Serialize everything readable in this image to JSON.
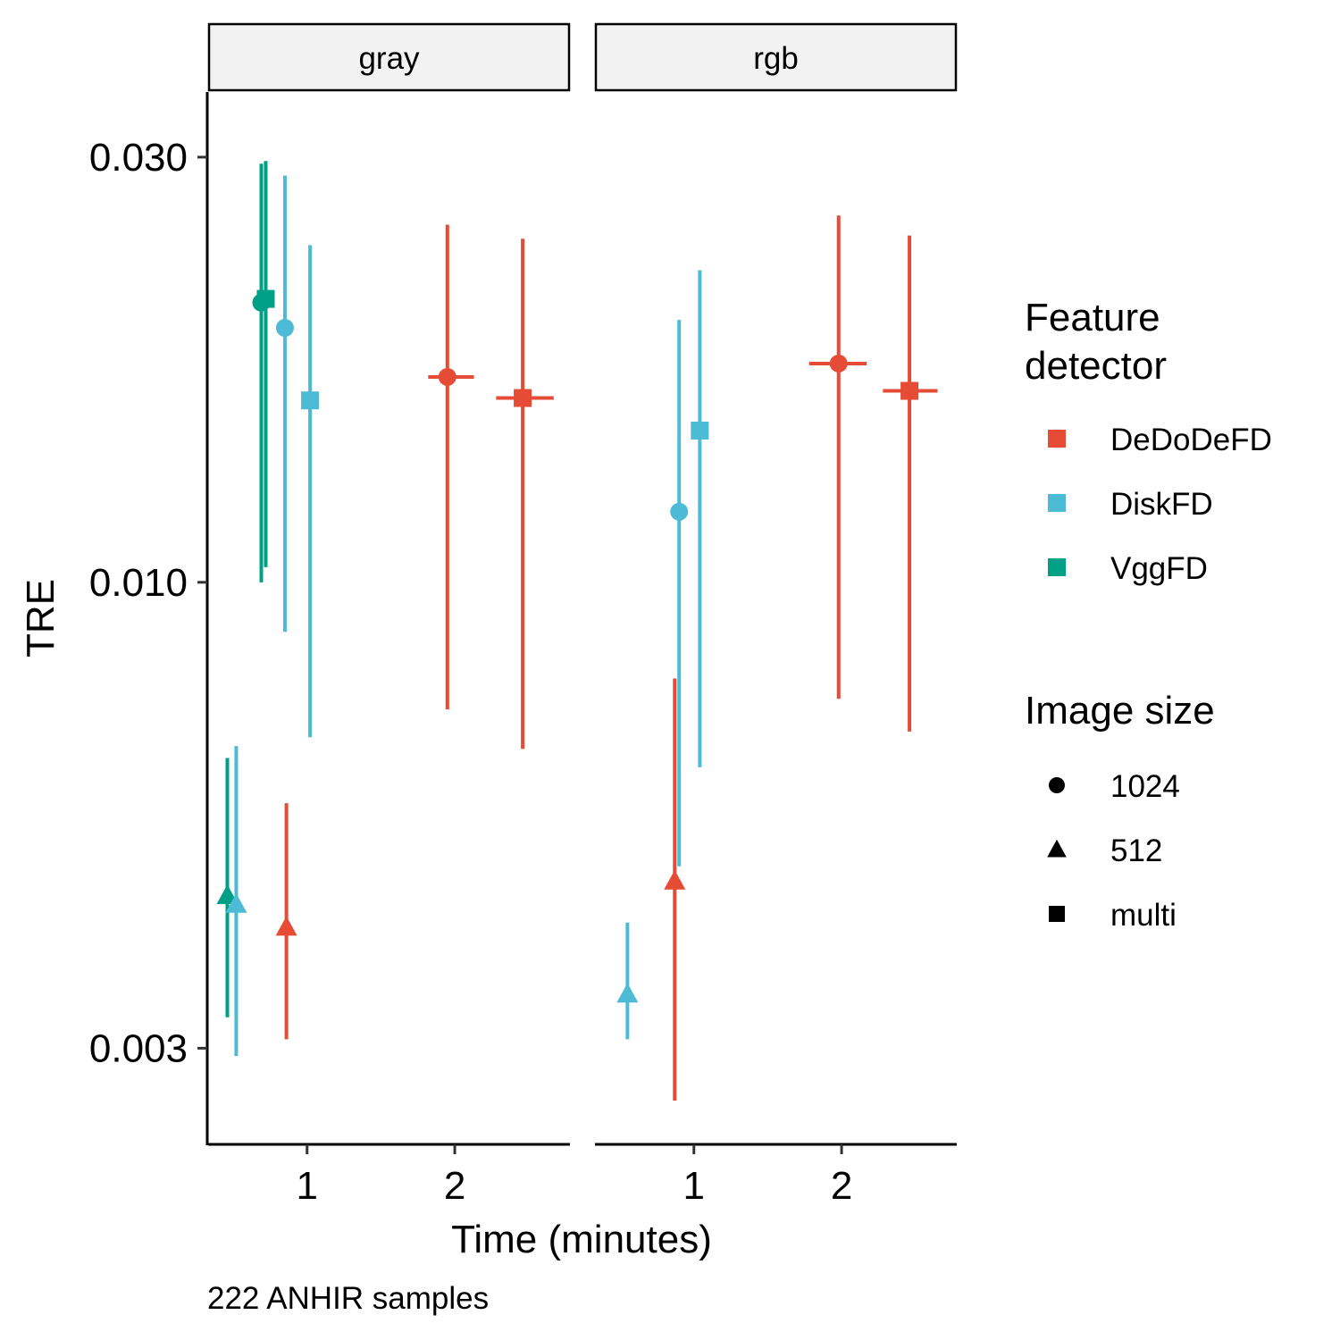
{
  "chart_data": {
    "type": "scatter",
    "title": "",
    "xlabel": "Time (minutes)",
    "ylabel": "TRE",
    "caption": "222 ANHIR samples",
    "y_scale": "log10",
    "ylim": [
      0.00234,
      0.0355
    ],
    "y_ticks": [
      {
        "value": 0.003,
        "label": "0.003"
      },
      {
        "value": 0.01,
        "label": "0.010"
      },
      {
        "value": 0.03,
        "label": "0.030"
      }
    ],
    "xlim": [
      0.33,
      2.78
    ],
    "x_ticks": [
      {
        "value": 1,
        "label": "1"
      },
      {
        "value": 2,
        "label": "2"
      }
    ],
    "grid": false,
    "legend_placement": "right",
    "colors": {
      "DeDoDeFD": "#E64B35",
      "DiskFD": "#4DBBD5",
      "VggFD": "#00A087"
    },
    "legend": {
      "color_title": [
        "Feature",
        "detector"
      ],
      "color_items": [
        "DeDoDeFD",
        "DiskFD",
        "VggFD"
      ],
      "shape_title": "Image size",
      "shape_items": [
        {
          "label": "1024",
          "shape": "circle"
        },
        {
          "label": "512",
          "shape": "triangle"
        },
        {
          "label": "multi",
          "shape": "square"
        }
      ]
    },
    "panels": [
      {
        "name": "gray",
        "points": [
          {
            "detector": "VggFD",
            "size": "512",
            "x": 0.46,
            "x_low": 0.46,
            "x_high": 0.46,
            "y": 0.00445,
            "y_low": 0.00325,
            "y_high": 0.00635
          },
          {
            "detector": "DiskFD",
            "size": "512",
            "x": 0.52,
            "x_low": 0.52,
            "x_high": 0.52,
            "y": 0.00435,
            "y_low": 0.00294,
            "y_high": 0.00655
          },
          {
            "detector": "DeDoDeFD",
            "size": "512",
            "x": 0.86,
            "x_low": 0.86,
            "x_high": 0.86,
            "y": 0.0041,
            "y_low": 0.00307,
            "y_high": 0.00565
          },
          {
            "detector": "VggFD",
            "size": "1024",
            "x": 0.69,
            "x_low": 0.69,
            "x_high": 0.69,
            "y": 0.0206,
            "y_low": 0.01,
            "y_high": 0.0295
          },
          {
            "detector": "VggFD",
            "size": "multi",
            "x": 0.72,
            "x_low": 0.72,
            "x_high": 0.72,
            "y": 0.0208,
            "y_low": 0.0104,
            "y_high": 0.0297
          },
          {
            "detector": "DiskFD",
            "size": "1024",
            "x": 0.85,
            "x_low": 0.85,
            "x_high": 0.85,
            "y": 0.0193,
            "y_low": 0.0088,
            "y_high": 0.0286
          },
          {
            "detector": "DiskFD",
            "size": "multi",
            "x": 1.02,
            "x_low": 1.02,
            "x_high": 1.02,
            "y": 0.016,
            "y_low": 0.0067,
            "y_high": 0.0239
          },
          {
            "detector": "DeDoDeFD",
            "size": "1024",
            "x": 1.95,
            "x_low": 1.82,
            "x_high": 2.13,
            "y": 0.017,
            "y_low": 0.0072,
            "y_high": 0.0252
          },
          {
            "detector": "DeDoDeFD",
            "size": "multi",
            "x": 2.46,
            "x_low": 2.28,
            "x_high": 2.67,
            "y": 0.0161,
            "y_low": 0.0065,
            "y_high": 0.0243
          }
        ]
      },
      {
        "name": "rgb",
        "points": [
          {
            "detector": "DiskFD",
            "size": "512",
            "x": 0.55,
            "x_low": 0.55,
            "x_high": 0.55,
            "y": 0.00345,
            "y_low": 0.00307,
            "y_high": 0.00415
          },
          {
            "detector": "DeDoDeFD",
            "size": "512",
            "x": 0.87,
            "x_low": 0.87,
            "x_high": 0.87,
            "y": 0.00462,
            "y_low": 0.00262,
            "y_high": 0.0078
          },
          {
            "detector": "DiskFD",
            "size": "1024",
            "x": 0.9,
            "x_low": 0.9,
            "x_high": 0.9,
            "y": 0.012,
            "y_low": 0.0048,
            "y_high": 0.0197
          },
          {
            "detector": "DiskFD",
            "size": "multi",
            "x": 1.04,
            "x_low": 0.99,
            "x_high": 1.1,
            "y": 0.0148,
            "y_low": 0.0062,
            "y_high": 0.0224
          },
          {
            "detector": "DeDoDeFD",
            "size": "1024",
            "x": 1.98,
            "x_low": 1.78,
            "x_high": 2.17,
            "y": 0.0176,
            "y_low": 0.0074,
            "y_high": 0.0258
          },
          {
            "detector": "DeDoDeFD",
            "size": "multi",
            "x": 2.46,
            "x_low": 2.28,
            "x_high": 2.65,
            "y": 0.0164,
            "y_low": 0.0068,
            "y_high": 0.0245
          }
        ]
      }
    ]
  }
}
